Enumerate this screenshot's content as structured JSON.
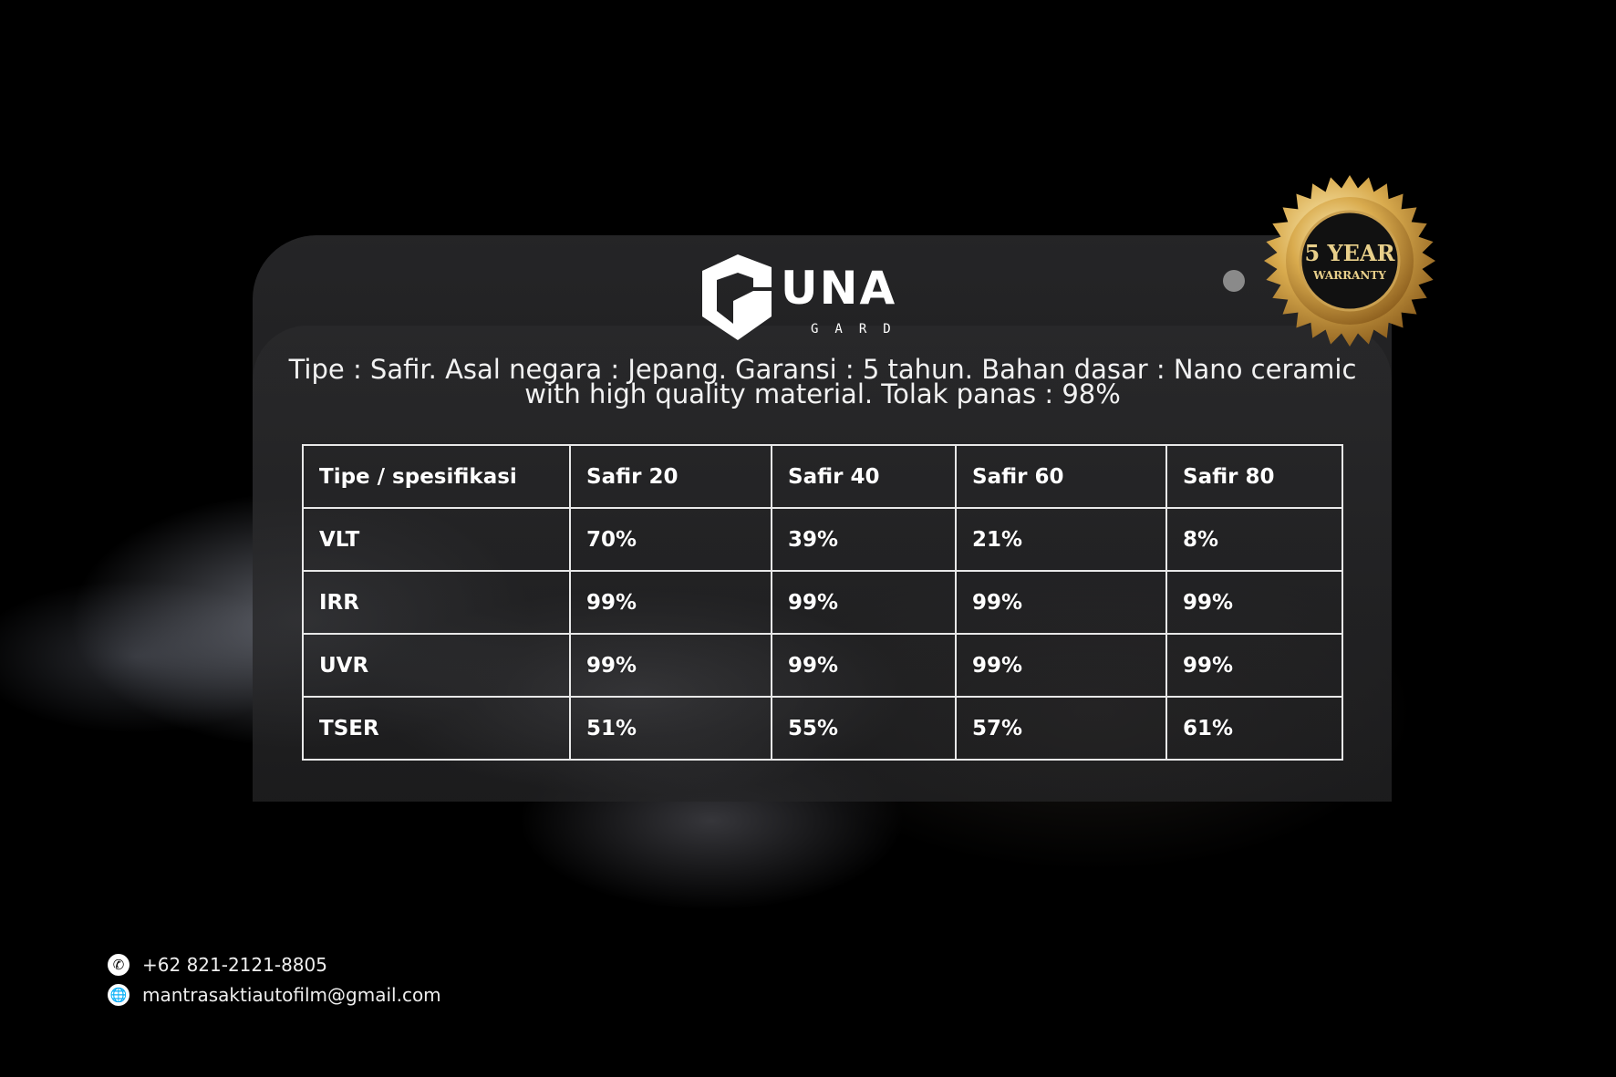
{
  "brand": {
    "name": "UNA",
    "sub": "GARD"
  },
  "badge": {
    "line1": "5 YEAR",
    "line2": "WARRANTY",
    "color": "#c9a24a"
  },
  "description": {
    "line1": "Tipe : Safir. Asal negara : Jepang. Garansi : 5 tahun. Bahan dasar : Nano ceramic",
    "line2": "with high quality material. Tolak panas : 98%"
  },
  "table": {
    "headers": [
      "Tipe / spesifikasi",
      "Safir 20",
      "Safir 40",
      "Safir 60",
      "Safir 80"
    ],
    "rows": [
      [
        "VLT",
        "70%",
        "39%",
        "21%",
        "8%"
      ],
      [
        "IRR",
        "99%",
        "99%",
        "99%",
        "99%"
      ],
      [
        "UVR",
        "99%",
        "99%",
        "99%",
        "99%"
      ],
      [
        "TSER",
        "51%",
        "55%",
        "57%",
        "61%"
      ]
    ]
  },
  "contact": {
    "phone": "+62 821-2121-8805",
    "email": "mantrasaktiautofilm@gmail.com",
    "phone_icon": "phone-icon",
    "email_icon": "globe-icon"
  }
}
